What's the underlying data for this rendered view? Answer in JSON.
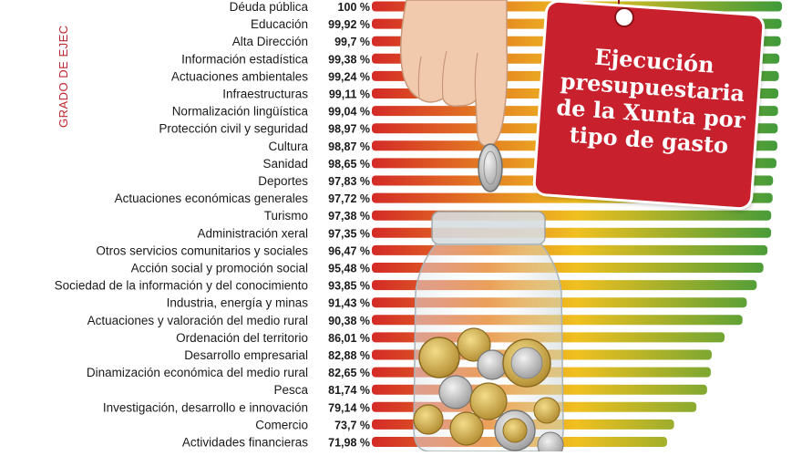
{
  "side_label": "GRADO DE EJEC",
  "tag_title": "Ejecución presupuestaria de la Xunta por tipo de gasto",
  "colors": {
    "low": "#d42a26",
    "mid": "#f0c020",
    "high": "#3f9a3a",
    "label": "#1a1a1a",
    "accent": "#c8202c"
  },
  "chart_data": {
    "type": "bar",
    "orientation": "horizontal",
    "unit": "%",
    "title": "Ejecución presupuestaria de la Xunta por tipo de gasto",
    "categories": [
      "Déuda pública",
      "Educación",
      "Alta Dirección",
      "Información estadística",
      "Actuaciones ambientales",
      "Infraestructuras",
      "Normalización lingüística",
      "Protección civil y seguridad",
      "Cultura",
      "Sanidad",
      "Deportes",
      "Actuaciones económicas generales",
      "Turismo",
      "Administración xeral",
      "Otros servicios comunitarios y sociales",
      "Acción social y promoción social",
      "Sociedad de la información y del conocimiento",
      "Industria, energía y minas",
      "Actuaciones y valoración del medio rural",
      "Ordenación del territorio",
      "Desarrollo empresarial",
      "Dinamización económica del medio rural",
      "Pesca",
      "Investigación, desarrollo e innovación",
      "Comercio",
      "Actividades financieras"
    ],
    "values": [
      100,
      99.92,
      99.7,
      99.38,
      99.24,
      99.11,
      99.04,
      98.97,
      98.87,
      98.65,
      97.83,
      97.72,
      97.38,
      97.35,
      96.47,
      95.48,
      93.85,
      91.43,
      90.38,
      86.01,
      82.88,
      82.65,
      81.74,
      79.14,
      73.7,
      71.98
    ],
    "value_labels": [
      "100 %",
      "99,92 %",
      "99,7 %",
      "99,38 %",
      "99,24 %",
      "99,11 %",
      "99,04 %",
      "98,97 %",
      "98,87 %",
      "98,65 %",
      "97,83 %",
      "97,72 %",
      "97,38 %",
      "97,35 %",
      "96,47 %",
      "95,48 %",
      "93,85 %",
      "91,43 %",
      "90,38 %",
      "86,01 %",
      "82,88 %",
      "82,65 %",
      "81,74 %",
      "79,14 %",
      "73,7 %",
      "71,98 %"
    ]
  }
}
